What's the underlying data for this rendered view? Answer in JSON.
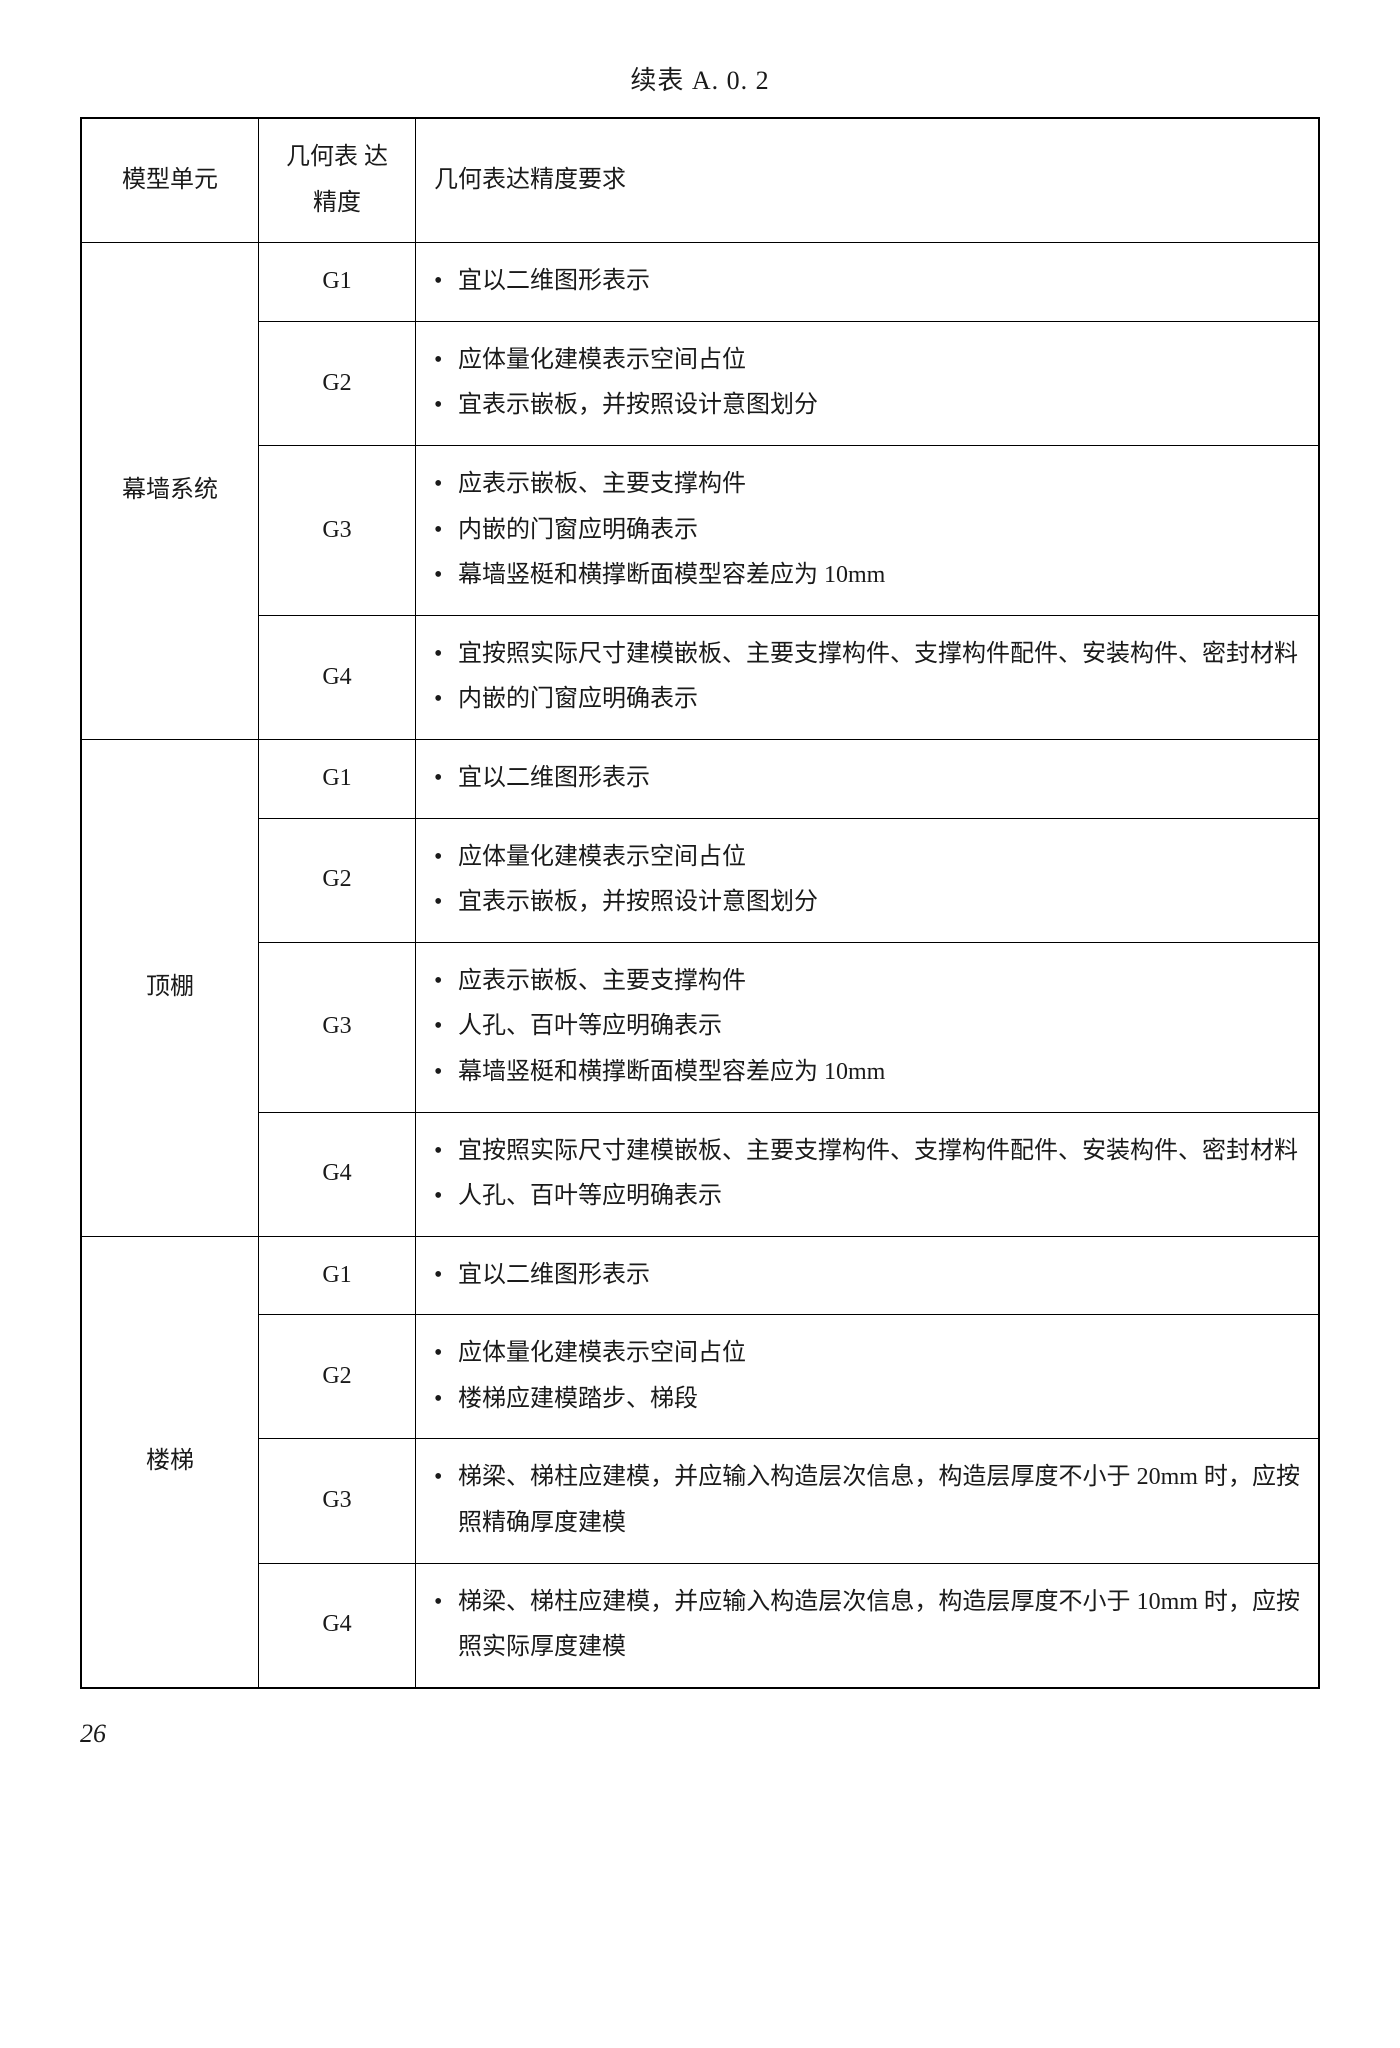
{
  "title": "续表 A. 0. 2",
  "headers": {
    "unit": "模型单元",
    "level": "几何表\n达精度",
    "req": "几何表达精度要求"
  },
  "sections": [
    {
      "unit": "幕墙系统",
      "rows": [
        {
          "level": "G1",
          "items": [
            "宜以二维图形表示"
          ]
        },
        {
          "level": "G2",
          "items": [
            "应体量化建模表示空间占位",
            "宜表示嵌板，并按照设计意图划分"
          ]
        },
        {
          "level": "G3",
          "items": [
            "应表示嵌板、主要支撑构件",
            "内嵌的门窗应明确表示",
            "幕墙竖梃和横撑断面模型容差应为 10mm"
          ]
        },
        {
          "level": "G4",
          "items": [
            "宜按照实际尺寸建模嵌板、主要支撑构件、支撑构件配件、安装构件、密封材料",
            "内嵌的门窗应明确表示"
          ]
        }
      ]
    },
    {
      "unit": "顶棚",
      "rows": [
        {
          "level": "G1",
          "items": [
            "宜以二维图形表示"
          ]
        },
        {
          "level": "G2",
          "items": [
            "应体量化建模表示空间占位",
            "宜表示嵌板，并按照设计意图划分"
          ]
        },
        {
          "level": "G3",
          "items": [
            "应表示嵌板、主要支撑构件",
            "人孔、百叶等应明确表示",
            "幕墙竖梃和横撑断面模型容差应为 10mm"
          ]
        },
        {
          "level": "G4",
          "items": [
            "宜按照实际尺寸建模嵌板、主要支撑构件、支撑构件配件、安装构件、密封材料",
            "人孔、百叶等应明确表示"
          ]
        }
      ]
    },
    {
      "unit": "楼梯",
      "rows": [
        {
          "level": "G1",
          "items": [
            "宜以二维图形表示"
          ]
        },
        {
          "level": "G2",
          "items": [
            "应体量化建模表示空间占位",
            "楼梯应建模踏步、梯段"
          ]
        },
        {
          "level": "G3",
          "items": [
            "梯梁、梯柱应建模，并应输入构造层次信息，构造层厚度不小于 20mm 时，应按照精确厚度建模"
          ]
        },
        {
          "level": "G4",
          "items": [
            "梯梁、梯柱应建模，并应输入构造层次信息，构造层厚度不小于 10mm 时，应按照实际厚度建模"
          ]
        }
      ]
    }
  ],
  "page_number": "26",
  "style": {
    "text_color": "#1a1a1a",
    "border_color": "#000000",
    "background_color": "#ffffff",
    "font_family": "SimSun",
    "title_fontsize": 26,
    "cell_fontsize": 24,
    "line_height": 1.9
  }
}
